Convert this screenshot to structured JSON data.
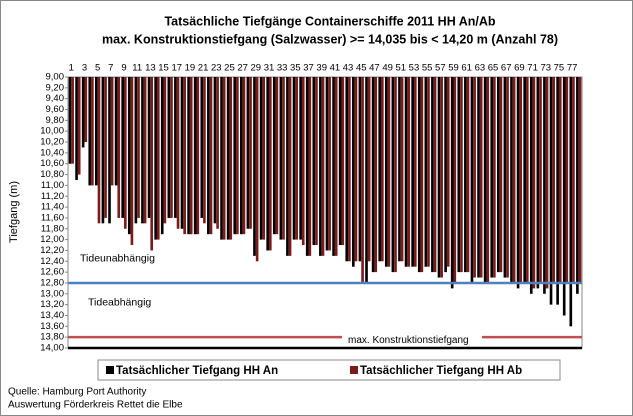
{
  "chart_data": {
    "type": "bar",
    "title": "Tatsächliche Tiefgänge Containerschiffe  2011 HH An/Ab",
    "subtitle": "max. Konstruktionstiefgang  (Salzwasser)  >= 14,035 bis < 14,20 m (Anzahl 78)",
    "y_label": "Tiefgang (m)",
    "y_inverted": true,
    "categories": [
      "1",
      null,
      "3",
      null,
      "5",
      null,
      "7",
      null,
      "9",
      null,
      "11",
      null,
      "13",
      null,
      "15",
      null,
      "17",
      null,
      "19",
      null,
      "21",
      null,
      "23",
      null,
      "25",
      null,
      "27",
      null,
      "29",
      null,
      "31",
      null,
      "33",
      null,
      "35",
      null,
      "37",
      null,
      "39",
      null,
      "41",
      null,
      "43",
      null,
      "45",
      null,
      "47",
      null,
      "49",
      null,
      "51",
      null,
      "53",
      null,
      "55",
      null,
      "57",
      null,
      "59",
      null,
      "61",
      null,
      "63",
      null,
      "65",
      null,
      "67",
      null,
      "69",
      null,
      "71",
      null,
      "73",
      null,
      "75",
      null,
      "77",
      null
    ],
    "series": [
      {
        "name": "Tatsächlicher Tiefgang HH An",
        "color": "#000000",
        "values": [
          10.6,
          10.9,
          10.3,
          11.0,
          11.0,
          11.7,
          11.7,
          11.0,
          11.6,
          11.9,
          11.7,
          11.7,
          11.6,
          12.0,
          11.9,
          11.6,
          11.6,
          11.8,
          11.9,
          11.9,
          11.6,
          11.9,
          11.7,
          12.0,
          12.0,
          11.9,
          11.9,
          11.8,
          12.3,
          12.0,
          12.2,
          11.9,
          12.0,
          12.3,
          12.0,
          12.0,
          12.3,
          12.1,
          12.3,
          12.2,
          12.3,
          12.1,
          12.4,
          12.5,
          12.4,
          12.8,
          12.6,
          12.4,
          12.5,
          12.6,
          12.4,
          12.5,
          12.5,
          12.6,
          12.5,
          12.6,
          12.7,
          12.6,
          12.9,
          12.6,
          12.6,
          12.8,
          12.7,
          12.8,
          12.7,
          12.6,
          12.7,
          12.8,
          12.9,
          12.8,
          13.0,
          12.9,
          13.0,
          13.2,
          13.2,
          13.4,
          13.6,
          13.0
        ]
      },
      {
        "name": "Tatsächlicher Tiefgang HH Ab",
        "color": "#7b1c1c",
        "values": [
          10.6,
          10.8,
          10.2,
          11.0,
          11.7,
          11.6,
          11.0,
          11.6,
          11.8,
          12.1,
          11.6,
          11.7,
          12.2,
          12.0,
          11.7,
          11.6,
          11.8,
          11.9,
          11.9,
          11.9,
          11.7,
          11.9,
          11.8,
          12.0,
          12.0,
          11.9,
          11.9,
          11.8,
          12.4,
          12.0,
          12.2,
          11.9,
          12.0,
          12.3,
          12.0,
          12.1,
          12.3,
          12.1,
          12.3,
          12.2,
          12.3,
          12.1,
          12.4,
          12.4,
          12.8,
          12.4,
          12.6,
          12.4,
          12.5,
          12.6,
          12.4,
          12.5,
          12.5,
          12.6,
          12.5,
          12.6,
          12.7,
          12.5,
          12.8,
          12.6,
          12.6,
          12.7,
          12.7,
          12.8,
          12.7,
          12.6,
          12.7,
          12.8,
          12.8,
          12.8,
          12.9,
          12.8,
          12.9,
          12.8,
          12.8,
          12.8,
          12.8,
          12.8
        ]
      }
    ],
    "ylim": [
      9.0,
      14.0
    ],
    "yticks": [
      {
        "value": 9.0,
        "label": "9,00"
      },
      {
        "value": 9.2,
        "label": "9,20"
      },
      {
        "value": 9.4,
        "label": "9,40"
      },
      {
        "value": 9.6,
        "label": "9,60"
      },
      {
        "value": 9.8,
        "label": "9,80"
      },
      {
        "value": 10.0,
        "label": "10,00"
      },
      {
        "value": 10.2,
        "label": "10,20"
      },
      {
        "value": 10.4,
        "label": "10,40"
      },
      {
        "value": 10.6,
        "label": "10,60"
      },
      {
        "value": 10.8,
        "label": "10,80"
      },
      {
        "value": 11.0,
        "label": "11,00"
      },
      {
        "value": 11.2,
        "label": "11,20"
      },
      {
        "value": 11.4,
        "label": "11,40"
      },
      {
        "value": 11.6,
        "label": "11,60"
      },
      {
        "value": 11.8,
        "label": "11,80"
      },
      {
        "value": 12.0,
        "label": "12,00"
      },
      {
        "value": 12.2,
        "label": "12,20"
      },
      {
        "value": 12.4,
        "label": "12,40"
      },
      {
        "value": 12.6,
        "label": "12,60"
      },
      {
        "value": 12.8,
        "label": "12,80"
      },
      {
        "value": 13.0,
        "label": "13,00"
      },
      {
        "value": 13.2,
        "label": "13,20"
      },
      {
        "value": 13.4,
        "label": "13,40"
      },
      {
        "value": 13.6,
        "label": "13,60"
      },
      {
        "value": 13.8,
        "label": "13,80"
      },
      {
        "value": 14.0,
        "label": "14,00"
      }
    ],
    "reference_lines": [
      {
        "value": 12.8,
        "color": "#4f81bd",
        "label_above": "Tideunabhängig",
        "label_below": "Tideabhängig"
      },
      {
        "value": 13.8,
        "color": "#c0504d",
        "label": "max. Konstruktionstiefgang"
      },
      {
        "value": 14.0,
        "color": "#000000"
      }
    ],
    "legend": "bottom",
    "footer": [
      "Quelle: Hamburg Port Authority",
      "Auswertung Förderkreis Rettet die Elbe"
    ]
  }
}
